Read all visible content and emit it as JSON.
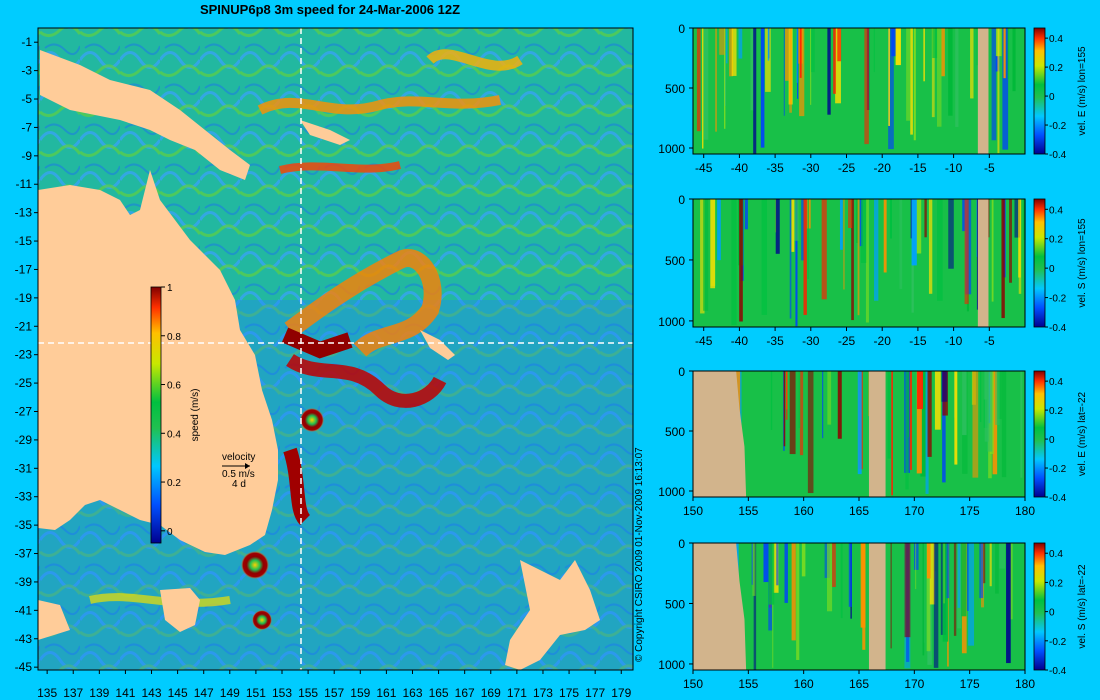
{
  "map": {
    "title": "SPINUP6p8 3m speed for 24-Mar-2006 12Z",
    "copyright": "© Copyright CSIRO 2009   01-Nov-2009 16:13:07",
    "x_ticks": [
      "135",
      "137",
      "139",
      "141",
      "143",
      "145",
      "147",
      "149",
      "151",
      "153",
      "155",
      "157",
      "159",
      "161",
      "163",
      "165",
      "167",
      "169",
      "171",
      "173",
      "175",
      "177",
      "179"
    ],
    "y_ticks": [
      "-1",
      "-3",
      "-5",
      "-7",
      "-9",
      "-11",
      "-13",
      "-15",
      "-17",
      "-19",
      "-21",
      "-23",
      "-25",
      "-27",
      "-29",
      "-31",
      "-33",
      "-35",
      "-37",
      "-39",
      "-41",
      "-43",
      "-45"
    ],
    "colorbar": {
      "label": "speed (m/s)",
      "ticks": [
        "1",
        "0.8",
        "0.6",
        "0.4",
        "0.2",
        "0"
      ]
    },
    "velocity_key": {
      "title": "velocity",
      "speed": "0.5 m/s",
      "duration": "4 d"
    },
    "colors": {
      "land": "#ffcc99",
      "cross_line": "#ffffff"
    }
  },
  "panels": [
    {
      "label": "vel. E (m/s) lon=155",
      "x_ticks": [
        "-45",
        "-40",
        "-35",
        "-30",
        "-25",
        "-20",
        "-15",
        "-10",
        "-5"
      ],
      "y_ticks": [
        "0",
        "500",
        "1000"
      ],
      "cbar_ticks": [
        "0.4",
        "0.2",
        "0",
        "-0.2",
        "-0.4"
      ]
    },
    {
      "label": "vel. S (m/s) lon=155",
      "x_ticks": [
        "-45",
        "-40",
        "-35",
        "-30",
        "-25",
        "-20",
        "-15",
        "-10",
        "-5"
      ],
      "y_ticks": [
        "0",
        "500",
        "1000"
      ],
      "cbar_ticks": [
        "0.4",
        "0.2",
        "0",
        "-0.2",
        "-0.4"
      ]
    },
    {
      "label": "vel. E (m/s) lat=-22",
      "x_ticks": [
        "150",
        "155",
        "160",
        "165",
        "170",
        "175",
        "180"
      ],
      "y_ticks": [
        "0",
        "500",
        "1000"
      ],
      "cbar_ticks": [
        "0.4",
        "0.2",
        "0",
        "-0.2",
        "-0.4"
      ]
    },
    {
      "label": "vel. S (m/s) lat=-22",
      "x_ticks": [
        "150",
        "155",
        "160",
        "165",
        "170",
        "175",
        "180"
      ],
      "y_ticks": [
        "0",
        "500",
        "1000"
      ],
      "cbar_ticks": [
        "0.4",
        "0.2",
        "0",
        "-0.2",
        "-0.4"
      ]
    }
  ],
  "chart_data": [
    {
      "type": "heatmap",
      "title": "SPINUP6p8 3m speed for 24-Mar-2006 12Z",
      "xlim": [
        135,
        180
      ],
      "ylim": [
        -45,
        0
      ],
      "colorbar_label": "speed (m/s)",
      "clim": [
        0,
        1
      ],
      "section_lines": {
        "lon": 155,
        "lat": -22
      }
    },
    {
      "type": "heatmap",
      "colorbar_label": "vel. E (m/s) lon=155",
      "xlim": [
        -45,
        0
      ],
      "ylim": [
        1050,
        0
      ],
      "clim": [
        -0.4,
        0.45
      ]
    },
    {
      "type": "heatmap",
      "colorbar_label": "vel. S (m/s) lon=155",
      "xlim": [
        -45,
        0
      ],
      "ylim": [
        1050,
        0
      ],
      "clim": [
        -0.4,
        0.45
      ]
    },
    {
      "type": "heatmap",
      "colorbar_label": "vel. E (m/s) lat=-22",
      "xlim": [
        150,
        180
      ],
      "ylim": [
        1050,
        0
      ],
      "clim": [
        -0.4,
        0.45
      ]
    },
    {
      "type": "heatmap",
      "colorbar_label": "vel. S (m/s) lat=-22",
      "xlim": [
        150,
        180
      ],
      "ylim": [
        1050,
        0
      ],
      "clim": [
        -0.4,
        0.45
      ]
    }
  ]
}
